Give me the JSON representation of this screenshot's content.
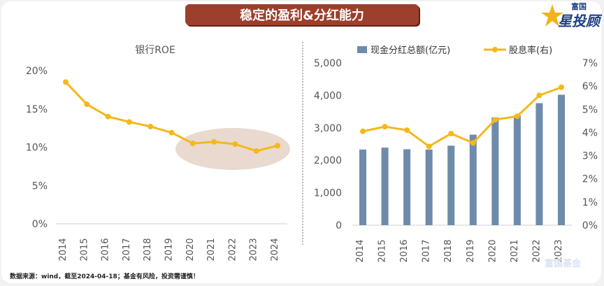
{
  "header": {
    "title": "稳定的盈利&分红能力"
  },
  "logo": {
    "top": "富国",
    "main": "星投顾"
  },
  "footer": {
    "source": "数据来源：wind，截至2024-04-18；基金有风险，投资需谨慎！"
  },
  "watermark": {
    "text": "富国基金"
  },
  "colors": {
    "line": "#f5b81c",
    "bar": "#6f8bab",
    "title_bg": "#9c3f2c",
    "highlight": "#ead9cf"
  },
  "chart_data": [
    {
      "type": "line",
      "title": "银行ROE",
      "x": [
        "2014",
        "2015",
        "2016",
        "2017",
        "2018",
        "2019",
        "2020",
        "2021",
        "2022",
        "2023",
        "2024"
      ],
      "series": [
        {
          "values": [
            18.5,
            15.6,
            14.0,
            13.3,
            12.7,
            11.9,
            10.5,
            10.7,
            10.4,
            9.5,
            10.2
          ]
        }
      ],
      "yticks": [
        "0%",
        "5%",
        "10%",
        "15%",
        "20%"
      ],
      "ylim": [
        0,
        20
      ],
      "grid": false
    },
    {
      "type": "bar+line",
      "x": [
        "2014",
        "2015",
        "2016",
        "2017",
        "2018",
        "2019",
        "2020",
        "2021",
        "2022",
        "2023"
      ],
      "series": [
        {
          "name": "现金分红总额(亿元)",
          "type": "bar",
          "axis": "left",
          "values": [
            2330,
            2390,
            2340,
            2330,
            2450,
            2790,
            3320,
            3380,
            3760,
            4020
          ]
        },
        {
          "name": "股息率(右)",
          "type": "line",
          "axis": "right",
          "values": [
            4.05,
            4.25,
            4.1,
            3.4,
            3.95,
            3.55,
            4.55,
            4.7,
            5.6,
            5.95
          ]
        }
      ],
      "yticks_left": [
        "0",
        "1,000",
        "2,000",
        "3,000",
        "4,000",
        "5,000"
      ],
      "yticks_right": [
        "0%",
        "1%",
        "2%",
        "3%",
        "4%",
        "5%",
        "6%",
        "7%"
      ],
      "ylim_left": [
        0,
        5000
      ],
      "ylim_right": [
        0,
        7
      ],
      "legend_position": "top",
      "grid": false
    }
  ]
}
